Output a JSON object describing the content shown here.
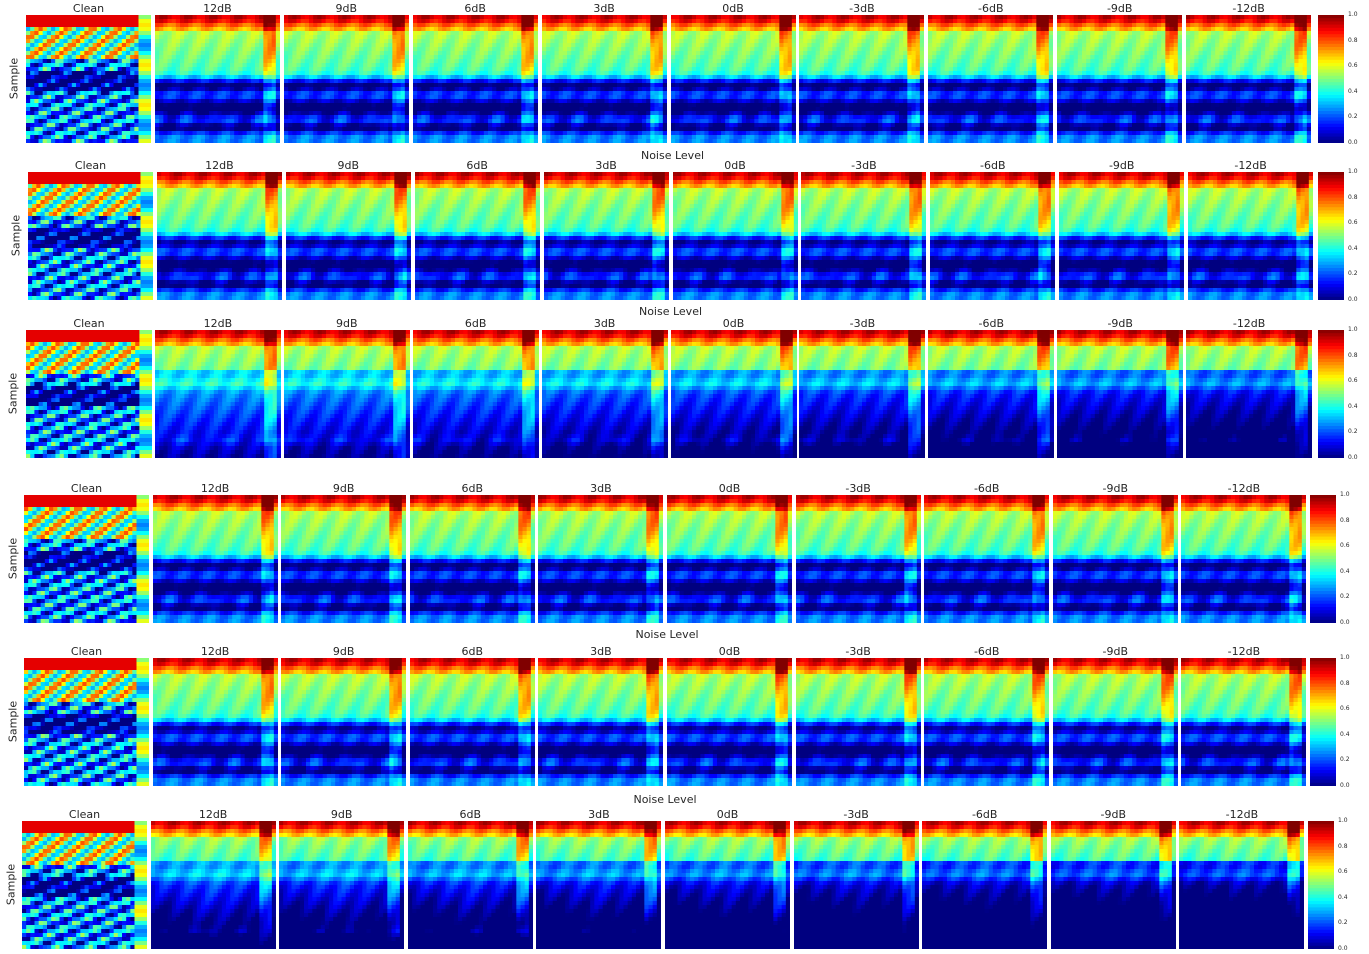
{
  "chart_data": {
    "type": "heatmap",
    "title": "",
    "xlabel": "Noise Level",
    "ylabel": "Sample",
    "panel_titles": [
      "Clean",
      "12dB",
      "9dB",
      "6dB",
      "3dB",
      "0dB",
      "-3dB",
      "-6dB",
      "-9dB",
      "-12dB"
    ],
    "colormap": "jet",
    "value_range": [
      0.0,
      1.0
    ],
    "colorbar_ticks": [
      "0.0",
      "0.2",
      "0.4",
      "0.6",
      "0.8",
      "1.0"
    ],
    "rows": [
      {
        "ylabel": "Sample",
        "xlabel": ""
      },
      {
        "ylabel": "Sample",
        "xlabel": "Noise Level"
      },
      {
        "ylabel": "Sample",
        "xlabel": "Noise Level"
      },
      {
        "ylabel": "Sample",
        "xlabel": ""
      },
      {
        "ylabel": "Sample",
        "xlabel": "Noise Level"
      },
      {
        "ylabel": "Sample",
        "xlabel": "Noise Level"
      }
    ]
  }
}
